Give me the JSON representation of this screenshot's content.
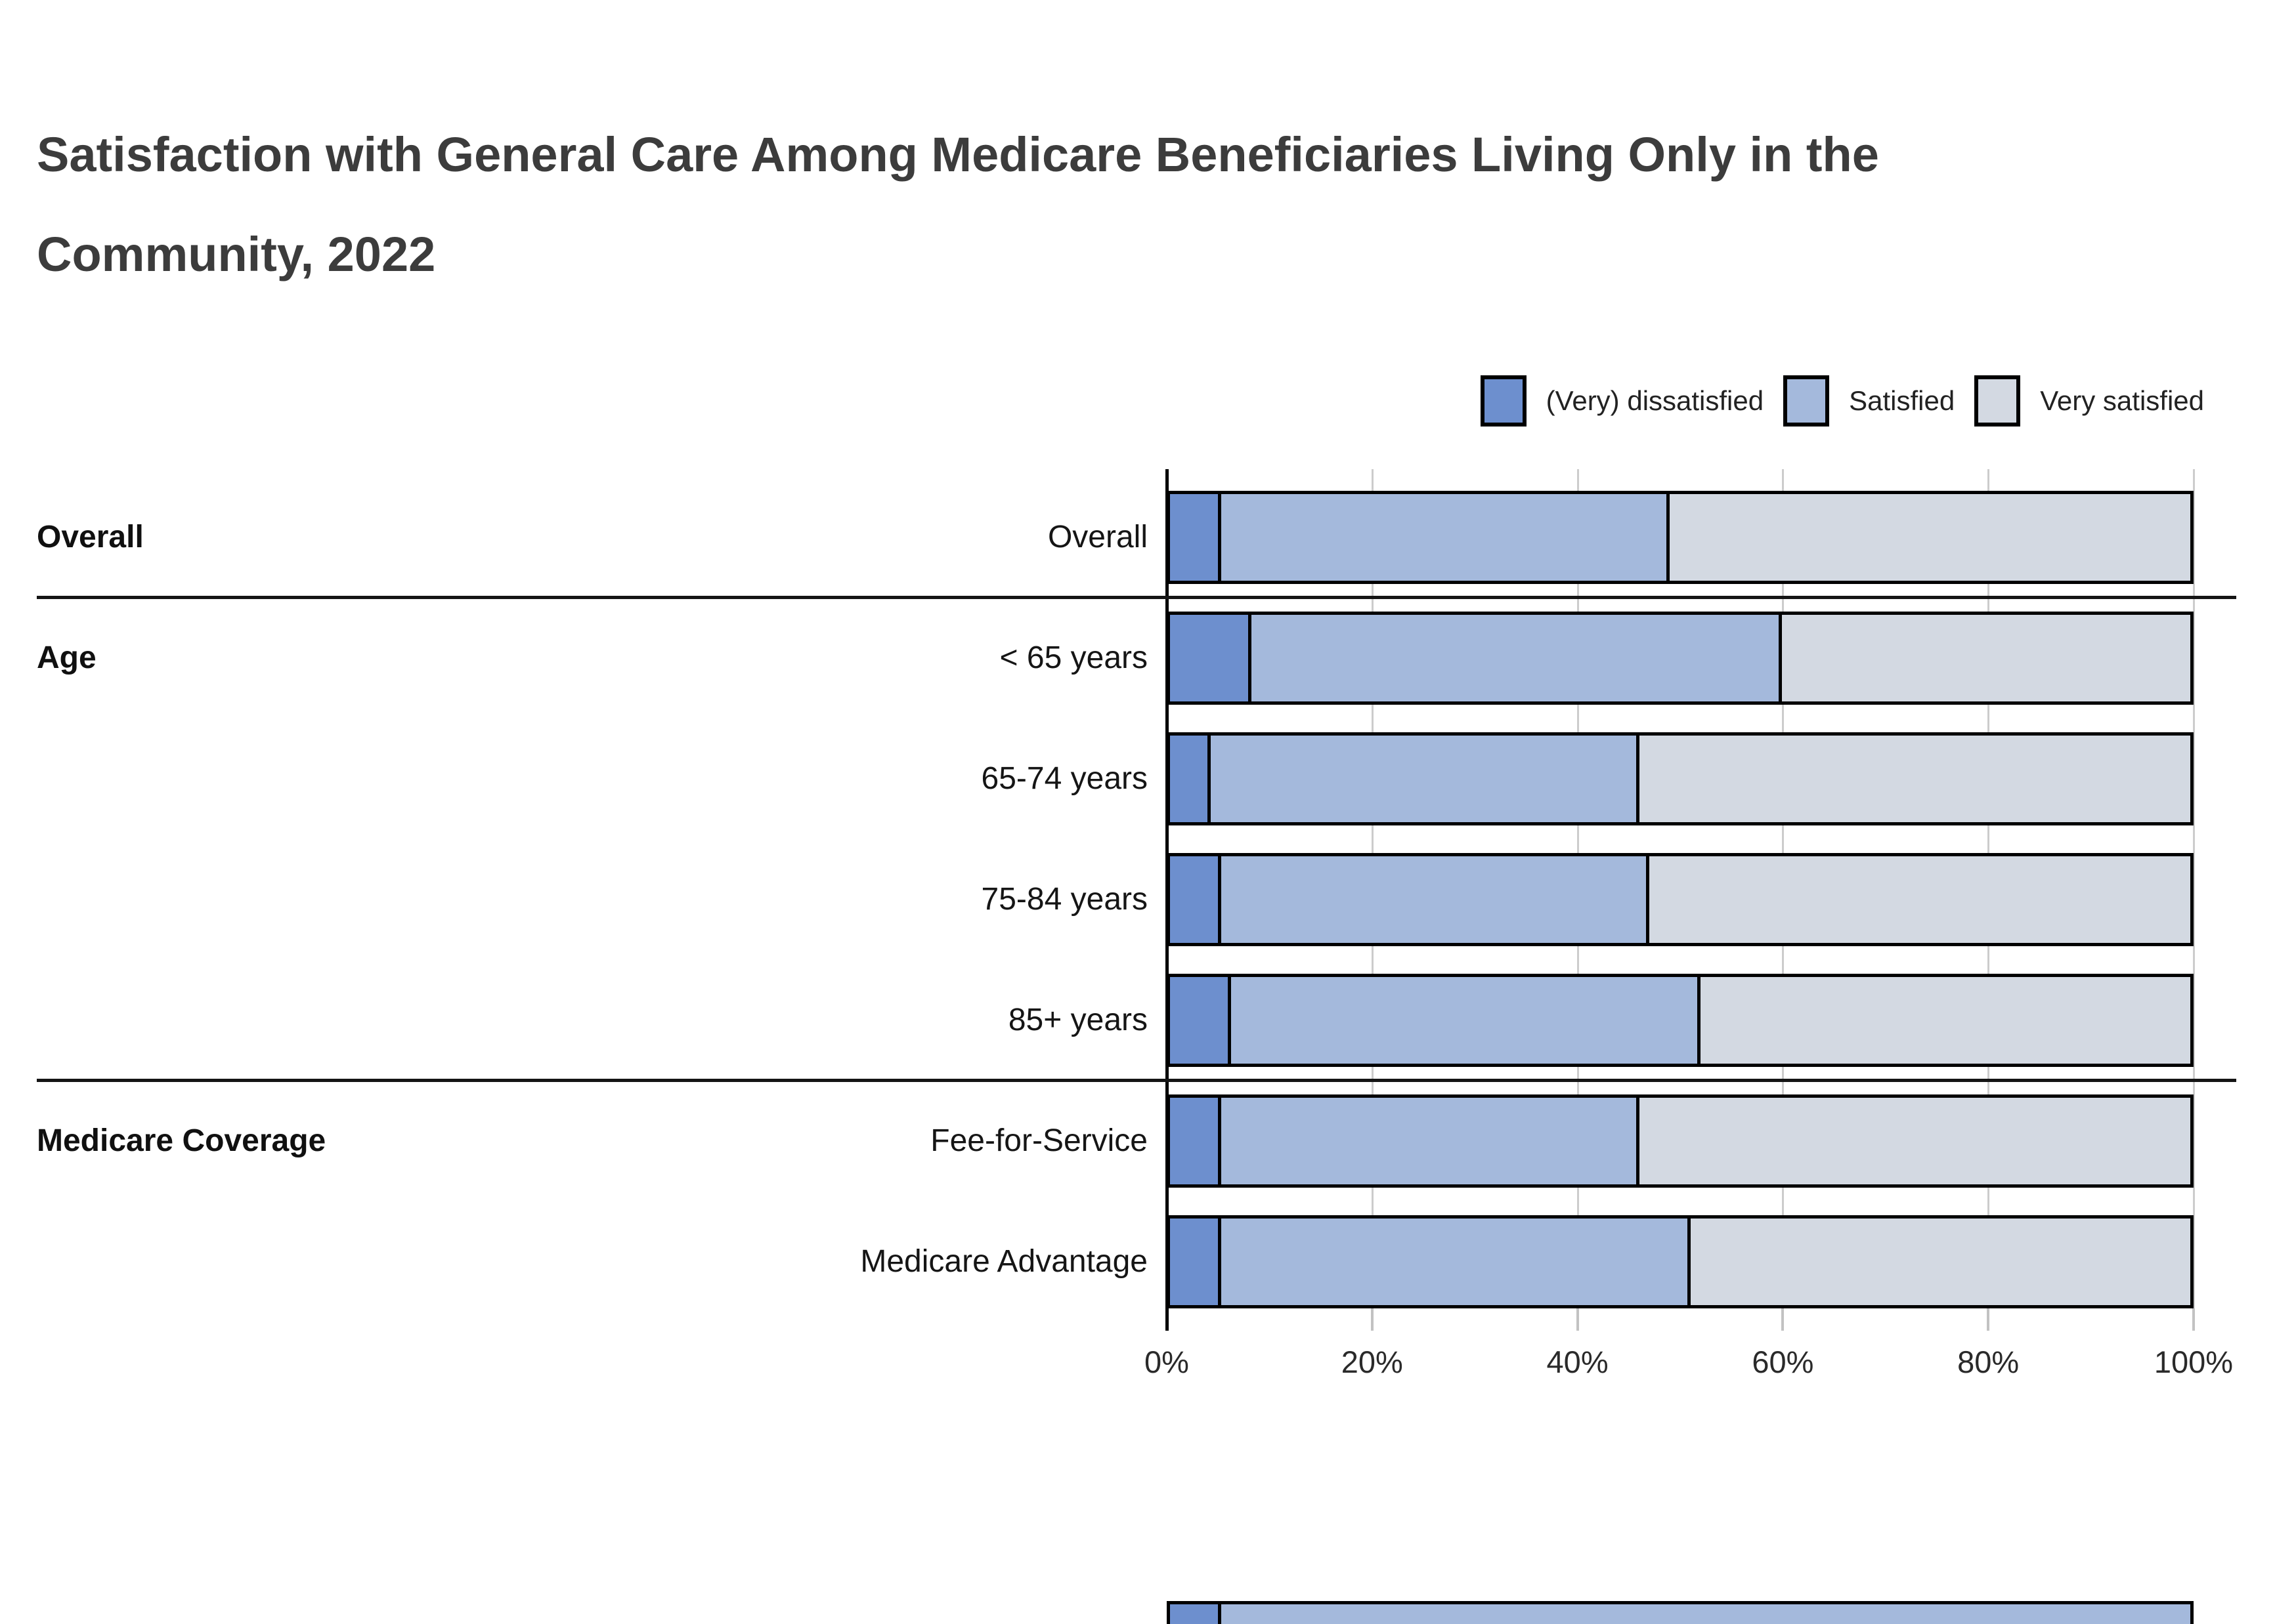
{
  "title": {
    "line1": "Satisfaction with General Care Among Medicare Beneficiaries Living Only in the",
    "line2": "Community, 2022"
  },
  "legend": [
    {
      "label": "(Very) dissatisfied",
      "color": "#6D8FCE"
    },
    {
      "label": "Satisfied",
      "color": "#A4B9DC"
    },
    {
      "label": "Very satisfied",
      "color": "#D3D9E2"
    }
  ],
  "chart_data": {
    "type": "bar",
    "orientation": "horizontal",
    "stacked": true,
    "unit": "percent",
    "xlim": [
      0,
      100
    ],
    "x_ticks": [
      "0%",
      "20%",
      "40%",
      "60%",
      "80%",
      "100%"
    ],
    "x_tick_values": [
      0,
      20,
      40,
      60,
      80,
      100
    ],
    "grid": true,
    "legend_position": "top-right",
    "series_names": [
      "(Very) dissatisfied",
      "Satisfied",
      "Very satisfied"
    ],
    "series_keys": [
      "dissatisfied",
      "satisfied",
      "very-satisfied"
    ],
    "colors": [
      "#6D8FCE",
      "#A4B9DC",
      "#D3D9E2"
    ],
    "groups": [
      {
        "label": "Overall",
        "rows": [
          {
            "label": "Overall",
            "values": [
              5,
              44,
              51
            ]
          }
        ]
      },
      {
        "label": "Age",
        "rows": [
          {
            "label": "< 65 years",
            "values": [
              8,
              52,
              40
            ]
          },
          {
            "label": "65-74 years",
            "values": [
              4,
              42,
              54
            ]
          },
          {
            "label": "75-84 years",
            "values": [
              5,
              42,
              53
            ]
          },
          {
            "label": "85+ years",
            "values": [
              6,
              46,
              48
            ]
          }
        ]
      },
      {
        "label": "Medicare Coverage",
        "rows": [
          {
            "label": "Fee-for-Service",
            "values": [
              5,
              41,
              54
            ]
          },
          {
            "label": "Medicare Advantage",
            "values": [
              5,
              46,
              49
            ]
          }
        ]
      }
    ],
    "bottom_partial_bar": {
      "values": [
        5,
        95
      ],
      "colors": [
        "#6D8FCE",
        "#A4B9DC"
      ]
    }
  }
}
